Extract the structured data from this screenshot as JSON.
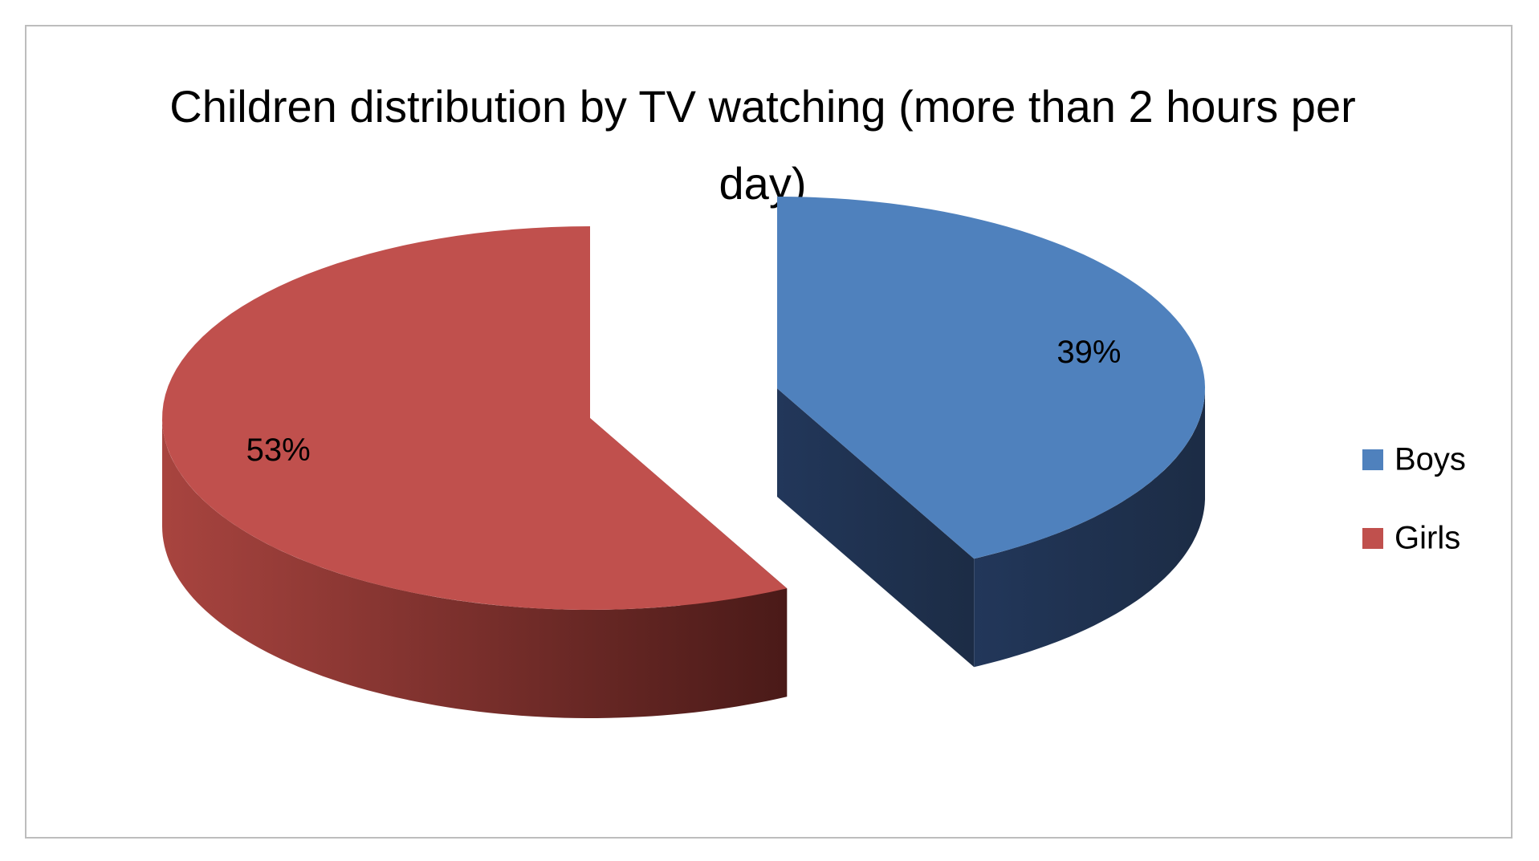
{
  "chart_data": {
    "type": "pie",
    "title": "Children distribution by TV watching (more than 2 hours per day)",
    "categories": [
      "Boys",
      "Girls"
    ],
    "values": [
      39,
      53
    ],
    "value_labels": [
      "39%",
      "53%"
    ],
    "colors": [
      "#4f81bd",
      "#c0504d"
    ],
    "legend": "right"
  }
}
